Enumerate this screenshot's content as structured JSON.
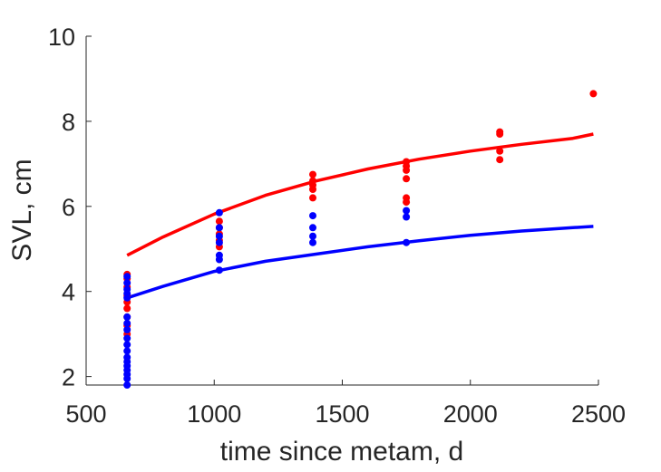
{
  "chart_data": {
    "type": "scatter",
    "title": "",
    "xlabel": "time since metam, d",
    "ylabel": "SVL, cm",
    "xlim": [
      500,
      2500
    ],
    "ylim": [
      1.8,
      10
    ],
    "xticks": [
      500,
      1000,
      1500,
      2000,
      2500
    ],
    "yticks": [
      2,
      4,
      6,
      8,
      10
    ],
    "grid": false,
    "legend": "none",
    "series": [
      {
        "kind": "points",
        "color": "#ff0000",
        "points": [
          [
            660,
            4.4
          ],
          [
            660,
            4.3
          ],
          [
            660,
            4.1
          ],
          [
            660,
            3.9
          ],
          [
            660,
            3.75
          ],
          [
            660,
            3.6
          ],
          [
            660,
            3.4
          ],
          [
            660,
            3.2
          ],
          [
            660,
            3.0
          ],
          [
            1020,
            5.65
          ],
          [
            1020,
            5.5
          ],
          [
            1020,
            5.35
          ],
          [
            1020,
            5.2
          ],
          [
            1020,
            5.05
          ],
          [
            1385,
            6.75
          ],
          [
            1385,
            6.6
          ],
          [
            1385,
            6.5
          ],
          [
            1385,
            6.4
          ],
          [
            1385,
            6.2
          ],
          [
            1750,
            7.05
          ],
          [
            1750,
            6.95
          ],
          [
            1750,
            6.85
          ],
          [
            1750,
            6.65
          ],
          [
            1750,
            6.2
          ],
          [
            1750,
            6.1
          ],
          [
            2115,
            7.75
          ],
          [
            2115,
            7.7
          ],
          [
            2115,
            7.3
          ],
          [
            2115,
            7.1
          ],
          [
            2480,
            8.65
          ]
        ]
      },
      {
        "kind": "points",
        "color": "#0000ff",
        "points": [
          [
            660,
            4.35
          ],
          [
            660,
            4.2
          ],
          [
            660,
            4.05
          ],
          [
            660,
            3.95
          ],
          [
            660,
            3.85
          ],
          [
            660,
            3.4
          ],
          [
            660,
            3.25
          ],
          [
            660,
            3.1
          ],
          [
            660,
            2.9
          ],
          [
            660,
            2.75
          ],
          [
            660,
            2.6
          ],
          [
            660,
            2.45
          ],
          [
            660,
            2.35
          ],
          [
            660,
            2.25
          ],
          [
            660,
            2.15
          ],
          [
            660,
            2.05
          ],
          [
            660,
            1.95
          ],
          [
            660,
            1.8
          ],
          [
            1020,
            5.85
          ],
          [
            1020,
            5.5
          ],
          [
            1020,
            5.3
          ],
          [
            1020,
            5.15
          ],
          [
            1020,
            4.85
          ],
          [
            1020,
            4.75
          ],
          [
            1020,
            4.5
          ],
          [
            1385,
            5.78
          ],
          [
            1385,
            5.5
          ],
          [
            1385,
            5.3
          ],
          [
            1385,
            5.15
          ],
          [
            1750,
            5.9
          ],
          [
            1750,
            5.75
          ],
          [
            1750,
            5.15
          ]
        ]
      },
      {
        "kind": "line",
        "color": "#ff0000",
        "x": [
          660,
          800,
          1000,
          1200,
          1400,
          1600,
          1800,
          2000,
          2200,
          2400,
          2480
        ],
        "y": [
          4.85,
          5.28,
          5.82,
          6.26,
          6.6,
          6.88,
          7.11,
          7.3,
          7.46,
          7.6,
          7.7
        ]
      },
      {
        "kind": "line",
        "color": "#0000ff",
        "x": [
          660,
          800,
          1000,
          1200,
          1400,
          1600,
          1800,
          2000,
          2200,
          2400,
          2480
        ],
        "y": [
          3.85,
          4.12,
          4.47,
          4.71,
          4.88,
          5.05,
          5.19,
          5.32,
          5.42,
          5.5,
          5.53
        ]
      }
    ]
  }
}
